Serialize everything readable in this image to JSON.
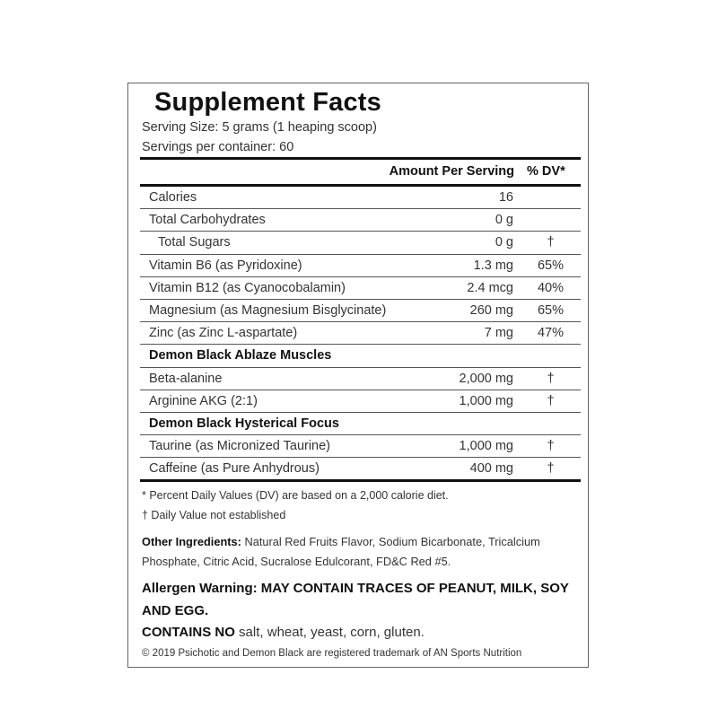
{
  "title": "Supplement Facts",
  "serving_size": "Serving Size: 5 grams (1 heaping scoop)",
  "servings_per_container": "Servings per container: 60",
  "header": {
    "amount": "Amount Per Serving",
    "dv": "% DV*"
  },
  "rows": [
    {
      "name": "Calories",
      "amount": "16",
      "dv": ""
    },
    {
      "name": "Total Carbohydrates",
      "amount": "0 g",
      "dv": ""
    },
    {
      "name": "Total Sugars",
      "amount": "0 g",
      "dv": "†"
    },
    {
      "name": "Vitamin B6 (as Pyridoxine)",
      "amount": "1.3 mg",
      "dv": "65%"
    },
    {
      "name": "Vitamin B12 (as Cyanocobalamin)",
      "amount": "2.4 mcg",
      "dv": "40%"
    },
    {
      "name": "Magnesium (as Magnesium Bisglycinate)",
      "amount": "260 mg",
      "dv": "65%"
    },
    {
      "name": "Zinc (as Zinc L-aspartate)",
      "amount": "7 mg",
      "dv": "47%"
    },
    {
      "name": "Demon Black Ablaze Muscles",
      "amount": "",
      "dv": ""
    },
    {
      "name": "Beta-alanine",
      "amount": "2,000 mg",
      "dv": "†"
    },
    {
      "name": "Arginine AKG (2:1)",
      "amount": "1,000 mg",
      "dv": "†"
    },
    {
      "name": "Demon Black Hysterical Focus",
      "amount": "",
      "dv": ""
    },
    {
      "name": "Taurine (as Micronized Taurine)",
      "amount": "1,000 mg",
      "dv": "†"
    },
    {
      "name": "Caffeine (as Pure Anhydrous)",
      "amount": "400 mg",
      "dv": "†"
    }
  ],
  "footnotes": {
    "dv_note": "* Percent Daily Values (DV) are based on a 2,000 calorie diet.",
    "dagger_note": "† Daily Value not established"
  },
  "other_ingredients": {
    "label": "Other Ingredients:",
    "text": " Natural Red Fruits Flavor, Sodium Bicarbonate, Tricalcium Phosphate, Citric Acid, Sucralose Edulcorant, FD&C Red #5."
  },
  "allergen": {
    "label": "Allergen Warning:",
    "text": " MAY CONTAIN TRACES OF PEANUT, MILK, SOY AND EGG."
  },
  "contains_no": {
    "label": "CONTAINS NO",
    "text": " salt, wheat, yeast, corn, gluten."
  },
  "copyright": "© 2019 Psichotic and Demon Black are registered trademark of AN Sports Nutrition"
}
